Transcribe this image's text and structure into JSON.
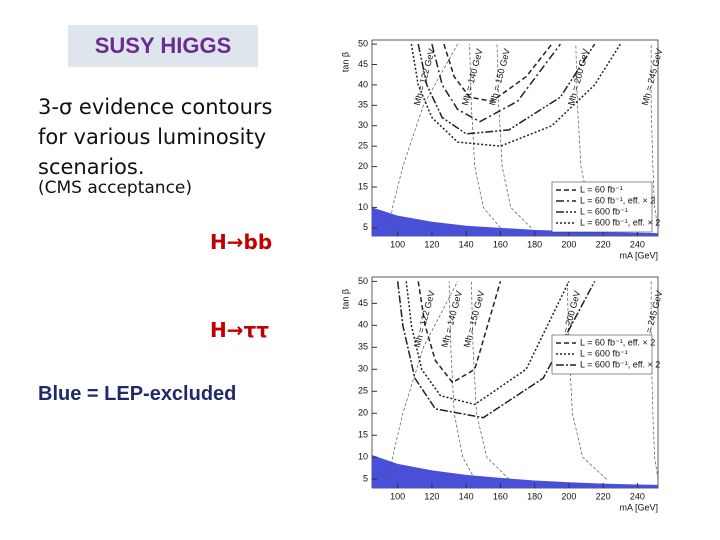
{
  "slide": {
    "title": "SUSY HIGGS",
    "description": "3-σ evidence contours for various luminosity scenarios.",
    "note": "(CMS acceptance)",
    "labels": [
      "H→bb",
      "H→ττ"
    ],
    "legend_note": "Blue = LEP-excluded"
  },
  "chart_data": [
    {
      "type": "line",
      "title": "H→bb",
      "y_label": "tan β",
      "x_label": "mA [GeV]",
      "xlim": [
        85,
        252
      ],
      "ylim": [
        3,
        51
      ],
      "xticks": [
        100,
        120,
        140,
        160,
        180,
        200,
        220,
        240
      ],
      "yticks": [
        5,
        10,
        15,
        20,
        25,
        30,
        35,
        40,
        45,
        50
      ],
      "series": [
        {
          "name": "L = 60 fb⁻¹",
          "color": "#222222",
          "dash": "5 3",
          "x": [
            127,
            133,
            142,
            155,
            175,
            190
          ],
          "values": [
            50,
            42,
            37,
            36,
            42,
            50
          ]
        },
        {
          "name": "L = 60 fb⁻¹, eff. × 2",
          "color": "#222222",
          "dash": "8 3 2 3",
          "x": [
            120,
            126,
            135,
            148,
            170,
            195
          ],
          "values": [
            50,
            40,
            34,
            31,
            36,
            50
          ]
        },
        {
          "name": "L = 600 fb⁻¹",
          "color": "#222222",
          "dash": "8 2 2 2 2 2",
          "x": [
            112,
            117,
            126,
            140,
            165,
            195,
            215
          ],
          "values": [
            50,
            40,
            32,
            28,
            29,
            37,
            50
          ]
        },
        {
          "name": "L = 600 fb⁻¹, eff. × 2",
          "color": "#222222",
          "dash": "2 2",
          "x": [
            108,
            112,
            120,
            135,
            160,
            190,
            215,
            230
          ],
          "values": [
            50,
            40,
            32,
            26,
            25,
            30,
            40,
            50
          ]
        }
      ],
      "contours": [
        {
          "label": "Mh = 122 GeV",
          "x": [
            95,
            97,
            103,
            115,
            135
          ],
          "values": [
            5,
            10,
            20,
            35,
            50
          ]
        },
        {
          "label": "Mh = 140 GeV",
          "x": [
            160,
            150,
            145,
            143,
            142
          ],
          "values": [
            5,
            10,
            20,
            35,
            50
          ]
        },
        {
          "label": "Mh = 150 GeV",
          "x": [
            178,
            166,
            161,
            159,
            158
          ],
          "values": [
            5,
            10,
            20,
            35,
            50
          ]
        },
        {
          "label": "Mh = 200 GeV",
          "x": [
            225,
            212,
            207,
            205,
            204
          ],
          "values": [
            5,
            10,
            20,
            35,
            50
          ]
        },
        {
          "label": "Mh = 245 GeV",
          "x": [
            252,
            250,
            249,
            248,
            248
          ],
          "values": [
            5,
            10,
            20,
            35,
            50
          ]
        }
      ],
      "excluded": {
        "color": "#4a4fd8",
        "x": [
          85,
          100,
          120,
          140,
          160,
          180,
          200,
          220,
          240,
          252
        ],
        "values": [
          10,
          8,
          6.5,
          5.5,
          5,
          4.5,
          4.2,
          4,
          3.8,
          3.7
        ]
      },
      "legend": "bottom-right"
    },
    {
      "type": "line",
      "title": "H→ττ",
      "y_label": "tan β",
      "x_label": "mA [GeV]",
      "xlim": [
        85,
        252
      ],
      "ylim": [
        3,
        51
      ],
      "xticks": [
        100,
        120,
        140,
        160,
        180,
        200,
        220,
        240
      ],
      "yticks": [
        5,
        10,
        15,
        20,
        25,
        30,
        35,
        40,
        45,
        50
      ],
      "series": [
        {
          "name": "L = 60 fb⁻¹, eff. × 2",
          "color": "#222222",
          "dash": "5 3",
          "x": [
            112,
            116,
            122,
            132,
            145,
            160
          ],
          "values": [
            50,
            40,
            32,
            27,
            30,
            50
          ]
        },
        {
          "name": "L = 600 fb⁻¹",
          "color": "#222222",
          "dash": "2 2",
          "x": [
            105,
            108,
            114,
            125,
            145,
            175,
            200
          ],
          "values": [
            50,
            40,
            30,
            24,
            22,
            30,
            50
          ]
        },
        {
          "name": "L = 600 fb⁻¹, eff. × 2",
          "color": "#222222",
          "dash": "8 2 2 2",
          "x": [
            100,
            103,
            110,
            122,
            150,
            185,
            215
          ],
          "values": [
            50,
            40,
            28,
            21,
            19,
            28,
            50
          ]
        }
      ],
      "contours": [
        {
          "label": "Mh = 122 GeV",
          "x": [
            95,
            97,
            103,
            115,
            135
          ],
          "values": [
            5,
            10,
            20,
            35,
            50
          ]
        },
        {
          "label": "Mh = 140 GeV",
          "x": [
            145,
            138,
            133,
            131,
            130
          ],
          "values": [
            5,
            10,
            20,
            35,
            50
          ]
        },
        {
          "label": "Mh = 150 GeV",
          "x": [
            165,
            152,
            146,
            144,
            143
          ],
          "values": [
            5,
            10,
            20,
            35,
            50
          ]
        },
        {
          "label": "Mh = 200 GeV",
          "x": [
            222,
            208,
            202,
            200,
            199
          ],
          "values": [
            5,
            10,
            20,
            35,
            50
          ]
        },
        {
          "label": "Mh = 245 GeV",
          "x": [
            252,
            250,
            249,
            248,
            248
          ],
          "values": [
            5,
            10,
            20,
            35,
            50
          ]
        }
      ],
      "excluded": {
        "color": "#4a4fd8",
        "x": [
          85,
          100,
          120,
          140,
          160,
          180,
          200,
          220,
          240,
          252
        ],
        "values": [
          10.5,
          8.5,
          7,
          6,
          5.3,
          4.7,
          4.3,
          4,
          3.8,
          3.7
        ]
      },
      "legend": "top-right"
    }
  ]
}
